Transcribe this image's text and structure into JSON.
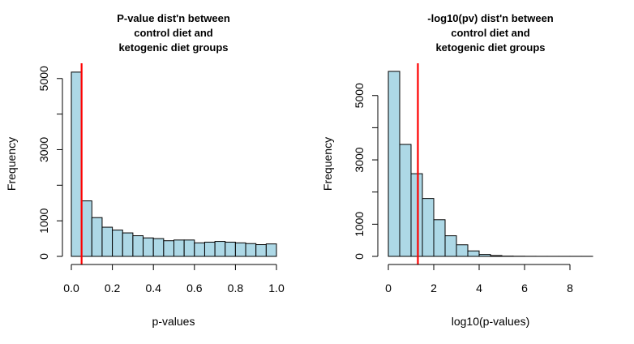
{
  "chart_data": [
    {
      "type": "bar",
      "title_lines": [
        "P-value dist'n between",
        "control diet and",
        "ketogenic diet groups"
      ],
      "xlabel": "p-values",
      "ylabel": "Frequency",
      "bin_width": 0.05,
      "bin_start": 0,
      "values": [
        5180,
        1560,
        1090,
        820,
        740,
        660,
        580,
        520,
        500,
        440,
        460,
        460,
        380,
        400,
        420,
        400,
        380,
        360,
        330,
        350
      ],
      "xlim": [
        0,
        1
      ],
      "ylim": [
        0,
        5200
      ],
      "xticks": [
        0,
        0.2,
        0.4,
        0.6,
        0.8,
        1.0
      ],
      "xtick_labels": [
        "0.0",
        "0.2",
        "0.4",
        "0.6",
        "0.8",
        "1.0"
      ],
      "yticks": [
        0,
        1000,
        3000,
        5000
      ],
      "ytick_labels": [
        "0",
        "1000",
        "3000",
        "5000"
      ],
      "yticks_minor": [
        2000,
        4000
      ],
      "vline": 0.05,
      "bar_color": "#add8e6",
      "line_color": "#ff0000"
    },
    {
      "type": "bar",
      "title_lines": [
        "-log10(pv) dist'n between",
        "control diet and",
        "ketogenic diet groups"
      ],
      "xlabel": "log10(p-values)",
      "ylabel": "Frequency",
      "bin_width": 0.5,
      "bin_start": 0,
      "values": [
        5750,
        3480,
        2570,
        1800,
        1140,
        640,
        360,
        170,
        60,
        25,
        8,
        4,
        2,
        1,
        1,
        1,
        1,
        1
      ],
      "xlim": [
        0,
        9
      ],
      "ylim": [
        0,
        5750
      ],
      "xticks": [
        0,
        2,
        4,
        6,
        8
      ],
      "xtick_labels": [
        "0",
        "2",
        "4",
        "6",
        "8"
      ],
      "yticks": [
        0,
        1000,
        3000,
        5000
      ],
      "ytick_labels": [
        "0",
        "1000",
        "3000",
        "5000"
      ],
      "yticks_minor": [
        2000,
        4000
      ],
      "vline": 1.301,
      "bar_color": "#add8e6",
      "line_color": "#ff0000"
    }
  ]
}
